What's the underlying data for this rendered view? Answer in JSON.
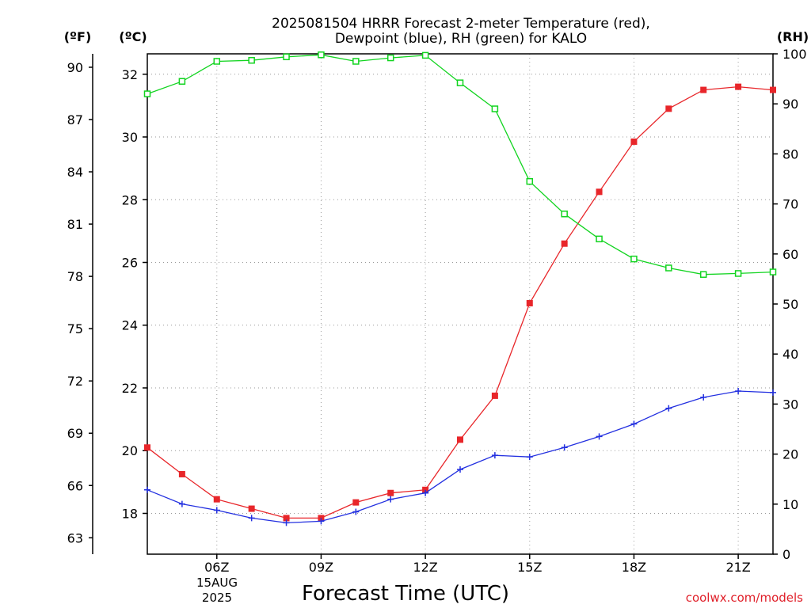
{
  "chart_data": {
    "type": "line",
    "title_line1": "2025081504 HRRR Forecast 2-meter Temperature (red),",
    "title_line2": "Dewpoint (blue), RH (green) for KALO",
    "xlabel": "Forecast Time (UTC)",
    "credit": "coolwx.com/models",
    "units": {
      "left_outer": "(ºF)",
      "left_inner": "(ºC)",
      "right": "(RH)"
    },
    "x_hours": [
      4,
      5,
      6,
      7,
      8,
      9,
      10,
      11,
      12,
      13,
      14,
      15,
      16,
      17,
      18,
      19,
      20,
      21,
      22
    ],
    "x_range": [
      4,
      22
    ],
    "x_ticks": [
      {
        "hour": 6,
        "label": "06Z"
      },
      {
        "hour": 9,
        "label": "09Z"
      },
      {
        "hour": 12,
        "label": "12Z"
      },
      {
        "hour": 15,
        "label": "15Z"
      },
      {
        "hour": 18,
        "label": "18Z"
      },
      {
        "hour": 21,
        "label": "21Z"
      }
    ],
    "date_label": [
      "15AUG",
      "2025"
    ],
    "celsius_range": [
      16.7,
      32.65
    ],
    "rh_range": [
      0,
      100
    ],
    "celsius_ticks": [
      18,
      20,
      22,
      24,
      26,
      28,
      30,
      32
    ],
    "fahrenheit_ticks": [
      63,
      66,
      69,
      72,
      75,
      78,
      81,
      84,
      87,
      90
    ],
    "rh_ticks": [
      0,
      10,
      20,
      30,
      40,
      50,
      60,
      70,
      80,
      90,
      100
    ],
    "grid": true,
    "series": [
      {
        "name": "Temperature",
        "axis": "celsius",
        "color": "#e8262a",
        "marker": "filled-square",
        "values": [
          20.1,
          19.25,
          18.45,
          18.15,
          17.85,
          17.85,
          18.35,
          18.65,
          18.75,
          20.35,
          21.75,
          24.7,
          26.6,
          28.25,
          29.85,
          30.9,
          31.5,
          31.6,
          31.5
        ]
      },
      {
        "name": "Dewpoint",
        "axis": "celsius",
        "color": "#2330e0",
        "marker": "plus",
        "values": [
          18.75,
          18.3,
          18.1,
          17.85,
          17.7,
          17.75,
          18.05,
          18.45,
          18.65,
          19.4,
          19.85,
          19.8,
          20.1,
          20.45,
          20.85,
          21.35,
          21.7,
          21.9,
          21.85
        ]
      },
      {
        "name": "RH",
        "axis": "rh",
        "color": "#12d420",
        "marker": "open-square",
        "values": [
          92,
          94.5,
          98.5,
          98.7,
          99.4,
          99.8,
          98.5,
          99.2,
          99.7,
          94.2,
          89,
          74.5,
          68,
          63,
          59,
          57.2,
          55.9,
          56.1,
          56.4
        ]
      }
    ]
  }
}
